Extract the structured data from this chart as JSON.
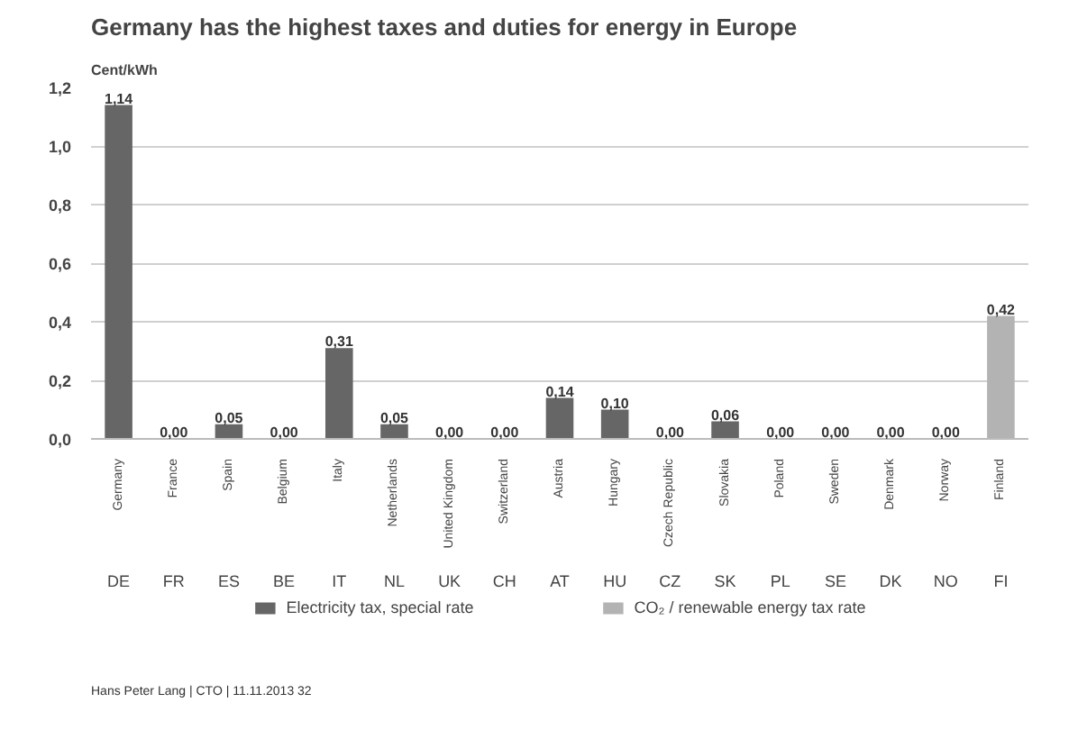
{
  "chart_data": {
    "type": "bar",
    "title": "Germany has the highest taxes and duties for energy in Europe",
    "ylabel": "Cent/kWh",
    "categories": [
      "Germany\nDE",
      "France\nFR",
      "Spain\nES",
      "Belgium\nBE",
      "Italy\nIT",
      "Netherlands\nNL",
      "United Kingdom\nUK",
      "Switzerland\nCH",
      "Austria\nAT",
      "Hungary\nHU",
      "Czech Republic\nCZ",
      "Slovakia\nSK",
      "Poland\nPL",
      "Sweden\nSE",
      "Denmark\nDK",
      "Norway\nNO",
      "Finland\nFI"
    ],
    "series": [
      {
        "name": "Electricity tax, special rate",
        "color": "#666666",
        "values": [
          1.14,
          0.0,
          0.05,
          0.0,
          0.31,
          0.05,
          0.0,
          0.0,
          0.14,
          0.1,
          0.0,
          0.06,
          0.0,
          0.0,
          0.0,
          0.0,
          null
        ],
        "value_labels": [
          "1,14",
          "0,00",
          "0,05",
          "0,00",
          "0,31",
          "0,05",
          "0,00",
          "0,00",
          "0,14",
          "0,10",
          "0,00",
          "0,06",
          "0,00",
          "0,00",
          "0,00",
          "0,00",
          null
        ]
      },
      {
        "name": "CO₂ / renewable energy tax rate",
        "color": "#b3b3b3",
        "values": [
          null,
          null,
          null,
          null,
          null,
          null,
          null,
          null,
          null,
          null,
          null,
          null,
          null,
          null,
          null,
          null,
          0.42
        ],
        "value_labels": [
          null,
          null,
          null,
          null,
          null,
          null,
          null,
          null,
          null,
          null,
          null,
          null,
          null,
          null,
          null,
          null,
          "0,42"
        ]
      }
    ],
    "ylim": [
      0,
      1.2
    ],
    "yticks": [
      {
        "value": 0,
        "label": "0,0"
      },
      {
        "value": 0.2,
        "label": "0,2"
      },
      {
        "value": 0.4,
        "label": "0,4"
      },
      {
        "value": 0.6,
        "label": "0,6"
      },
      {
        "value": 0.8,
        "label": "0,8"
      },
      {
        "value": 1.0,
        "label": "1,0"
      },
      {
        "value": 1.2,
        "label": "1,2"
      }
    ],
    "grid": "y",
    "legend": "bottom",
    "annotations": [
      "Hans Peter Lang | CTO | 11.11.2013     32"
    ]
  }
}
